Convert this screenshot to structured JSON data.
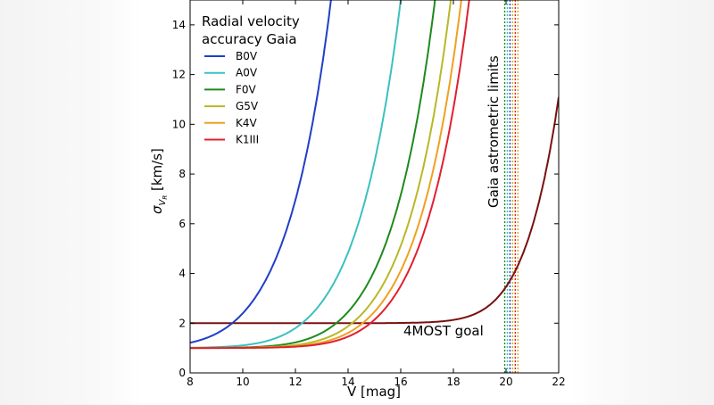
{
  "chart_data": {
    "type": "line",
    "title": "Radial velocity accuracy Gaia",
    "title_lines": [
      "Radial velocity",
      "accuracy Gaia"
    ],
    "xlabel": "V [mag]",
    "ylabel": "σ",
    "ylabel_sub": "V",
    "ylabel_subsub": "R",
    "ylabel_unit": "[km/s]",
    "xlim": [
      8,
      22
    ],
    "ylim": [
      0,
      15
    ],
    "xticks": [
      8,
      10,
      12,
      14,
      16,
      18,
      20,
      22
    ],
    "yticks": [
      0,
      2,
      4,
      6,
      8,
      10,
      12,
      14
    ],
    "legend_position": "top-left",
    "series": [
      {
        "name": "B0V",
        "color": "#1f3fc8",
        "floor": 1.0,
        "v_at_4": 11.0
      },
      {
        "name": "A0V",
        "color": "#3cc0c0",
        "floor": 1.0,
        "v_at_4": 13.65
      },
      {
        "name": "F0V",
        "color": "#1e8a1e",
        "floor": 1.0,
        "v_at_4": 14.95
      },
      {
        "name": "G5V",
        "color": "#b8b827",
        "floor": 1.0,
        "v_at_4": 15.55
      },
      {
        "name": "K4V",
        "color": "#f0a020",
        "floor": 1.0,
        "v_at_4": 15.95
      },
      {
        "name": "K1III",
        "color": "#e02030",
        "floor": 1.0,
        "v_at_4": 16.25
      }
    ],
    "goal_series": {
      "name": "4MOST goal",
      "color": "#7a1010",
      "floor": 2.0,
      "v_at_4": 20.3
    },
    "annotations": {
      "goal_label": "4MOST goal",
      "goal_label_pos": [
        16.1,
        1.5
      ],
      "astrometric_label": "Gaia astrometric limits",
      "astrometric_limits": [
        {
          "x": 19.95,
          "color": "#1e8a1e"
        },
        {
          "x": 20.05,
          "color": "#3cc0c0"
        },
        {
          "x": 20.15,
          "color": "#1f3fc8"
        },
        {
          "x": 20.25,
          "color": "#b8b827"
        },
        {
          "x": 20.35,
          "color": "#e02030"
        },
        {
          "x": 20.45,
          "color": "#f0a020"
        }
      ]
    }
  }
}
